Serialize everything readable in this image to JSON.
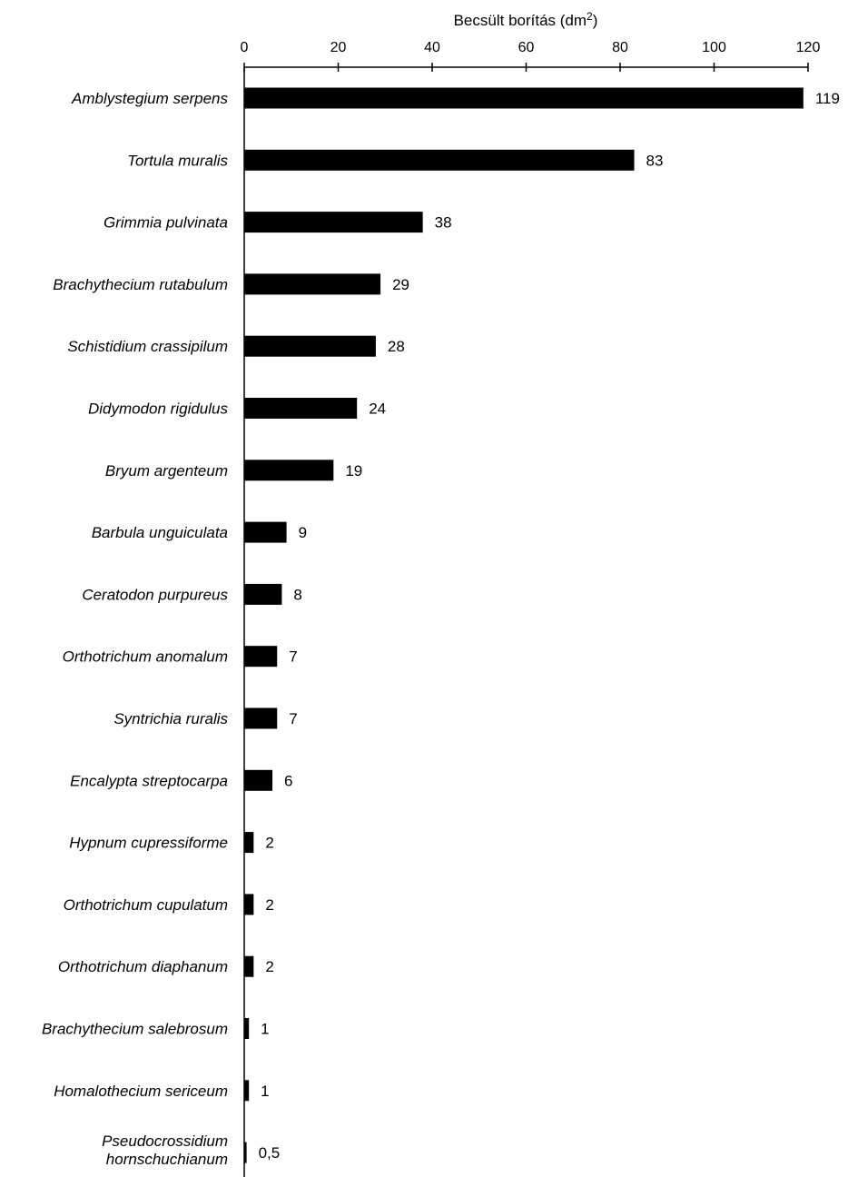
{
  "chart_data": {
    "type": "bar",
    "orientation": "horizontal",
    "xlabel": "Becsült borítás  (dm",
    "xlabel_sup": "2",
    "xlabel_suffix": ")",
    "xaxis_position": "top",
    "xlim": [
      0,
      120
    ],
    "xticks": [
      0,
      20,
      40,
      60,
      80,
      100,
      120
    ],
    "xtick_labels": [
      "0",
      "20",
      "40",
      "60",
      "80",
      "100",
      "120"
    ],
    "categories": [
      [
        "Amblystegium serpens"
      ],
      [
        "Tortula muralis"
      ],
      [
        "Grimmia pulvinata"
      ],
      [
        "Brachythecium rutabulum"
      ],
      [
        "Schistidium crassipilum"
      ],
      [
        "Didymodon rigidulus"
      ],
      [
        "Bryum argenteum"
      ],
      [
        "Barbula unguiculata"
      ],
      [
        "Ceratodon purpureus"
      ],
      [
        "Orthotrichum anomalum"
      ],
      [
        "Syntrichia ruralis"
      ],
      [
        "Encalypta streptocarpa"
      ],
      [
        "Hypnum cupressiforme"
      ],
      [
        "Orthotrichum cupulatum"
      ],
      [
        "Orthotrichum diaphanum"
      ],
      [
        "Brachythecium salebrosum"
      ],
      [
        "Homalothecium sericeum"
      ],
      [
        "Pseudocrossidium",
        "hornschuchianum"
      ]
    ],
    "values": [
      119,
      83,
      38,
      29,
      28,
      24,
      19,
      9,
      8,
      7,
      7,
      6,
      2,
      2,
      2,
      1,
      1,
      0.5
    ],
    "value_labels": [
      "119",
      "83",
      "38",
      "29",
      "28",
      "24",
      "19",
      "9",
      "8",
      "7",
      "7",
      "6",
      "2",
      "2",
      "2",
      "1",
      "1",
      "0,5"
    ],
    "bar_color": "#000000",
    "grid": false,
    "legend": "none"
  }
}
